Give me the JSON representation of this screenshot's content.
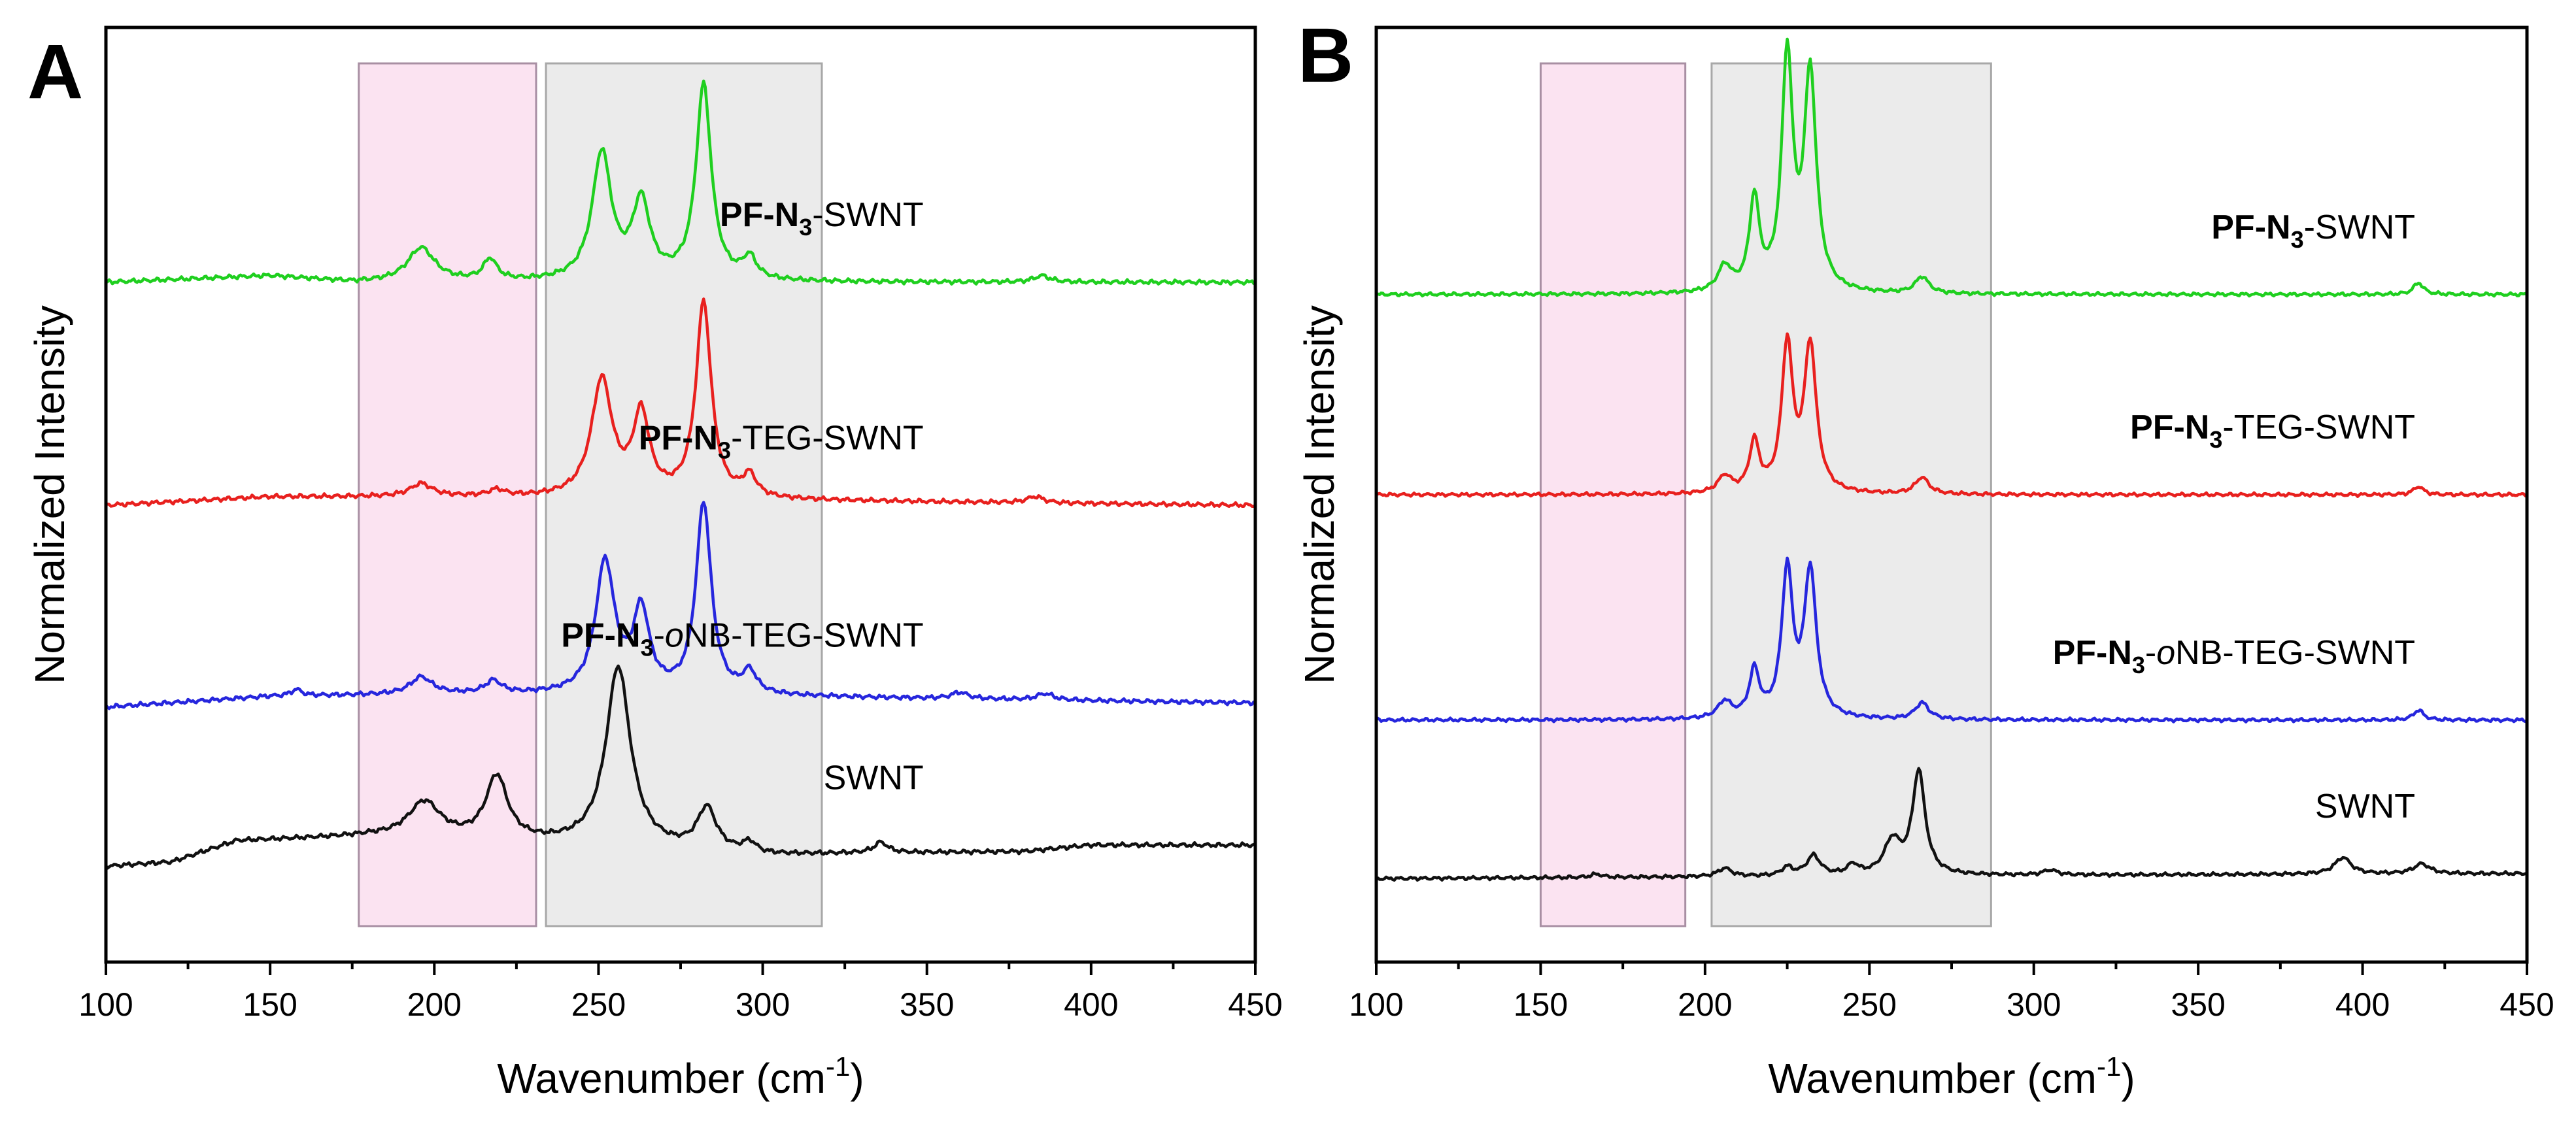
{
  "chart_data": [
    {
      "type": "line",
      "panel_label": "A",
      "xlabel": "Wavenumber (cm",
      "xlabel_sup": "-1",
      "xlabel_close": ")",
      "ylabel": "Normalized Intensity",
      "xlim": [
        100,
        450
      ],
      "ylim": [
        0,
        4.4
      ],
      "xticks": [
        "100",
        "150",
        "200",
        "250",
        "300",
        "350",
        "400",
        "450"
      ],
      "xtick_values": [
        100,
        150,
        200,
        250,
        300,
        350,
        400,
        450
      ],
      "shaded_regions": [
        {
          "x0": 177,
          "x1": 231,
          "color": "#fbe3f1",
          "stroke": "#a88fa3"
        },
        {
          "x0": 234,
          "x1": 318,
          "color": "#ebebeb",
          "stroke": "#a8a8a8"
        }
      ],
      "series": [
        {
          "name": "PF-N3-SWNT",
          "label_parts": [
            {
              "t": "PF-N",
              "s": "bold"
            },
            {
              "t": "3",
              "s": "bold-sub"
            },
            {
              "t": "-SWNT",
              "s": ""
            }
          ],
          "label_x": 349,
          "color": "#1fcf1f",
          "offset": 3.2,
          "baseline_points": [
            [
              100,
              0.0
            ],
            [
              150,
              0.03
            ],
            [
              175,
              0.0
            ],
            [
              450,
              0.0
            ]
          ],
          "peaks": [
            {
              "x": 196,
              "h": 0.16,
              "w": 5
            },
            {
              "x": 217,
              "h": 0.1,
              "w": 2.5
            },
            {
              "x": 251,
              "h": 0.6,
              "w": 3.5
            },
            {
              "x": 263,
              "h": 0.36,
              "w": 3.2
            },
            {
              "x": 282,
              "h": 0.92,
              "w": 2.8
            },
            {
              "x": 296,
              "h": 0.1,
              "w": 2.5
            },
            {
              "x": 385,
              "h": 0.03,
              "w": 3
            }
          ]
        },
        {
          "name": "PF-N3-TEG-SWNT",
          "label_parts": [
            {
              "t": "PF-N",
              "s": "bold"
            },
            {
              "t": "3",
              "s": "bold-sub"
            },
            {
              "t": "-TEG-SWNT",
              "s": ""
            }
          ],
          "label_x": 349,
          "color": "#e8201e",
          "offset": 2.15,
          "baseline_points": [
            [
              100,
              0.0
            ],
            [
              150,
              0.04
            ],
            [
              200,
              0.04
            ],
            [
              450,
              0.0
            ]
          ],
          "peaks": [
            {
              "x": 196,
              "h": 0.06,
              "w": 4
            },
            {
              "x": 219,
              "h": 0.03,
              "w": 3
            },
            {
              "x": 251,
              "h": 0.55,
              "w": 3.8
            },
            {
              "x": 263,
              "h": 0.38,
              "w": 3.0
            },
            {
              "x": 282,
              "h": 0.92,
              "w": 2.8
            },
            {
              "x": 296,
              "h": 0.1,
              "w": 2.5
            },
            {
              "x": 383,
              "h": 0.03,
              "w": 3
            }
          ]
        },
        {
          "name": "PF-N3-oNB-TEG-SWNT",
          "label_parts": [
            {
              "t": "PF-N",
              "s": "bold"
            },
            {
              "t": "3",
              "s": "bold-sub"
            },
            {
              "t": "-",
              "s": ""
            },
            {
              "t": "o",
              "s": "ital"
            },
            {
              "t": "NB-TEG-SWNT",
              "s": ""
            }
          ],
          "label_x": 349,
          "color": "#2626dd",
          "offset": 1.2,
          "baseline_points": [
            [
              100,
              0.0
            ],
            [
              150,
              0.05
            ],
            [
              200,
              0.06
            ],
            [
              300,
              0.05
            ],
            [
              450,
              0.02
            ]
          ],
          "peaks": [
            {
              "x": 158,
              "h": 0.03,
              "w": 2
            },
            {
              "x": 196,
              "h": 0.08,
              "w": 4
            },
            {
              "x": 218,
              "h": 0.06,
              "w": 3
            },
            {
              "x": 252,
              "h": 0.62,
              "w": 3.5
            },
            {
              "x": 263,
              "h": 0.38,
              "w": 3.0
            },
            {
              "x": 282,
              "h": 0.9,
              "w": 2.8
            },
            {
              "x": 296,
              "h": 0.1,
              "w": 2.5
            },
            {
              "x": 360,
              "h": 0.03,
              "w": 3
            },
            {
              "x": 386,
              "h": 0.03,
              "w": 3
            }
          ]
        },
        {
          "name": "SWNT",
          "label_parts": [
            {
              "t": "SWNT",
              "s": ""
            }
          ],
          "label_x": 349,
          "color": "#111111",
          "offset": 0.45,
          "baseline_points": [
            [
              100,
              0.0
            ],
            [
              120,
              0.02
            ],
            [
              140,
              0.12
            ],
            [
              180,
              0.14
            ],
            [
              240,
              0.1
            ],
            [
              300,
              0.05
            ],
            [
              330,
              0.06
            ],
            [
              380,
              0.07
            ],
            [
              400,
              0.1
            ],
            [
              450,
              0.1
            ]
          ],
          "peaks": [
            {
              "x": 197,
              "h": 0.17,
              "w": 6
            },
            {
              "x": 219,
              "h": 0.3,
              "w": 4
            },
            {
              "x": 256,
              "h": 0.85,
              "w": 4.5
            },
            {
              "x": 283,
              "h": 0.2,
              "w": 3.5
            },
            {
              "x": 296,
              "h": 0.05,
              "w": 2.5
            },
            {
              "x": 336,
              "h": 0.05,
              "w": 2.5
            }
          ]
        }
      ]
    },
    {
      "type": "line",
      "panel_label": "B",
      "xlabel": "Wavenumber (cm",
      "xlabel_sup": "-1",
      "xlabel_close": ")",
      "ylabel": "Normalized Intensity",
      "xlim": [
        100,
        450
      ],
      "ylim": [
        0,
        5.6
      ],
      "xticks": [
        "100",
        "150",
        "200",
        "250",
        "300",
        "350",
        "400",
        "450"
      ],
      "xtick_values": [
        100,
        150,
        200,
        250,
        300,
        350,
        400,
        450
      ],
      "shaded_regions": [
        {
          "x0": 150,
          "x1": 194,
          "color": "#fbe3f1",
          "stroke": "#a88fa3"
        },
        {
          "x0": 202,
          "x1": 287,
          "color": "#ebebeb",
          "stroke": "#a8a8a8"
        }
      ],
      "series": [
        {
          "name": "PF-N3-SWNT",
          "label_parts": [
            {
              "t": "PF-N",
              "s": "bold"
            },
            {
              "t": "3",
              "s": "bold-sub"
            },
            {
              "t": "-SWNT",
              "s": ""
            }
          ],
          "label_x": 416,
          "color": "#1fcf1f",
          "offset": 4.0,
          "baseline_points": [
            [
              100,
              0.0
            ],
            [
              450,
              0.0
            ]
          ],
          "peaks": [
            {
              "x": 206,
              "h": 0.15,
              "w": 2.5
            },
            {
              "x": 215,
              "h": 0.55,
              "w": 1.8
            },
            {
              "x": 225,
              "h": 1.4,
              "w": 2.0
            },
            {
              "x": 232,
              "h": 1.3,
              "w": 2.2
            },
            {
              "x": 266,
              "h": 0.1,
              "w": 2.5
            },
            {
              "x": 417,
              "h": 0.07,
              "w": 1.8
            }
          ]
        },
        {
          "name": "PF-N3-TEG-SWNT",
          "label_parts": [
            {
              "t": "PF-N",
              "s": "bold"
            },
            {
              "t": "3",
              "s": "bold-sub"
            },
            {
              "t": "-TEG-SWNT",
              "s": ""
            }
          ],
          "label_x": 416,
          "color": "#e8201e",
          "offset": 2.8,
          "baseline_points": [
            [
              100,
              0.0
            ],
            [
              450,
              0.0
            ]
          ],
          "peaks": [
            {
              "x": 206,
              "h": 0.1,
              "w": 2.5
            },
            {
              "x": 215,
              "h": 0.3,
              "w": 1.8
            },
            {
              "x": 225,
              "h": 0.88,
              "w": 2.0
            },
            {
              "x": 232,
              "h": 0.88,
              "w": 2.2
            },
            {
              "x": 266,
              "h": 0.1,
              "w": 2.5
            },
            {
              "x": 417,
              "h": 0.05,
              "w": 1.8
            }
          ]
        },
        {
          "name": "PF-N3-oNB-TEG-SWNT",
          "label_parts": [
            {
              "t": "PF-N",
              "s": "bold"
            },
            {
              "t": "3",
              "s": "bold-sub"
            },
            {
              "t": "-",
              "s": ""
            },
            {
              "t": "o",
              "s": "ital"
            },
            {
              "t": "NB-TEG-SWNT",
              "s": ""
            }
          ],
          "label_x": 416,
          "color": "#2626dd",
          "offset": 1.45,
          "baseline_points": [
            [
              100,
              0.0
            ],
            [
              450,
              0.0
            ]
          ],
          "peaks": [
            {
              "x": 206,
              "h": 0.1,
              "w": 2.5
            },
            {
              "x": 215,
              "h": 0.28,
              "w": 1.8
            },
            {
              "x": 225,
              "h": 0.88,
              "w": 2.0
            },
            {
              "x": 232,
              "h": 0.88,
              "w": 2.2
            },
            {
              "x": 266,
              "h": 0.1,
              "w": 2.5
            },
            {
              "x": 417,
              "h": 0.06,
              "w": 1.8
            }
          ]
        },
        {
          "name": "SWNT",
          "label_parts": [
            {
              "t": "SWNT",
              "s": ""
            }
          ],
          "label_x": 416,
          "color": "#111111",
          "offset": 0.5,
          "baseline_points": [
            [
              100,
              0.0
            ],
            [
              300,
              0.02
            ],
            [
              450,
              0.03
            ]
          ],
          "peaks": [
            {
              "x": 167,
              "h": 0.02,
              "w": 2
            },
            {
              "x": 206,
              "h": 0.05,
              "w": 2.5
            },
            {
              "x": 225,
              "h": 0.05,
              "w": 2
            },
            {
              "x": 233,
              "h": 0.12,
              "w": 2.5
            },
            {
              "x": 245,
              "h": 0.06,
              "w": 2
            },
            {
              "x": 257,
              "h": 0.2,
              "w": 3
            },
            {
              "x": 265,
              "h": 0.62,
              "w": 2.3
            },
            {
              "x": 305,
              "h": 0.03,
              "w": 2.5
            },
            {
              "x": 394,
              "h": 0.1,
              "w": 3
            },
            {
              "x": 418,
              "h": 0.06,
              "w": 3
            }
          ]
        }
      ]
    }
  ]
}
